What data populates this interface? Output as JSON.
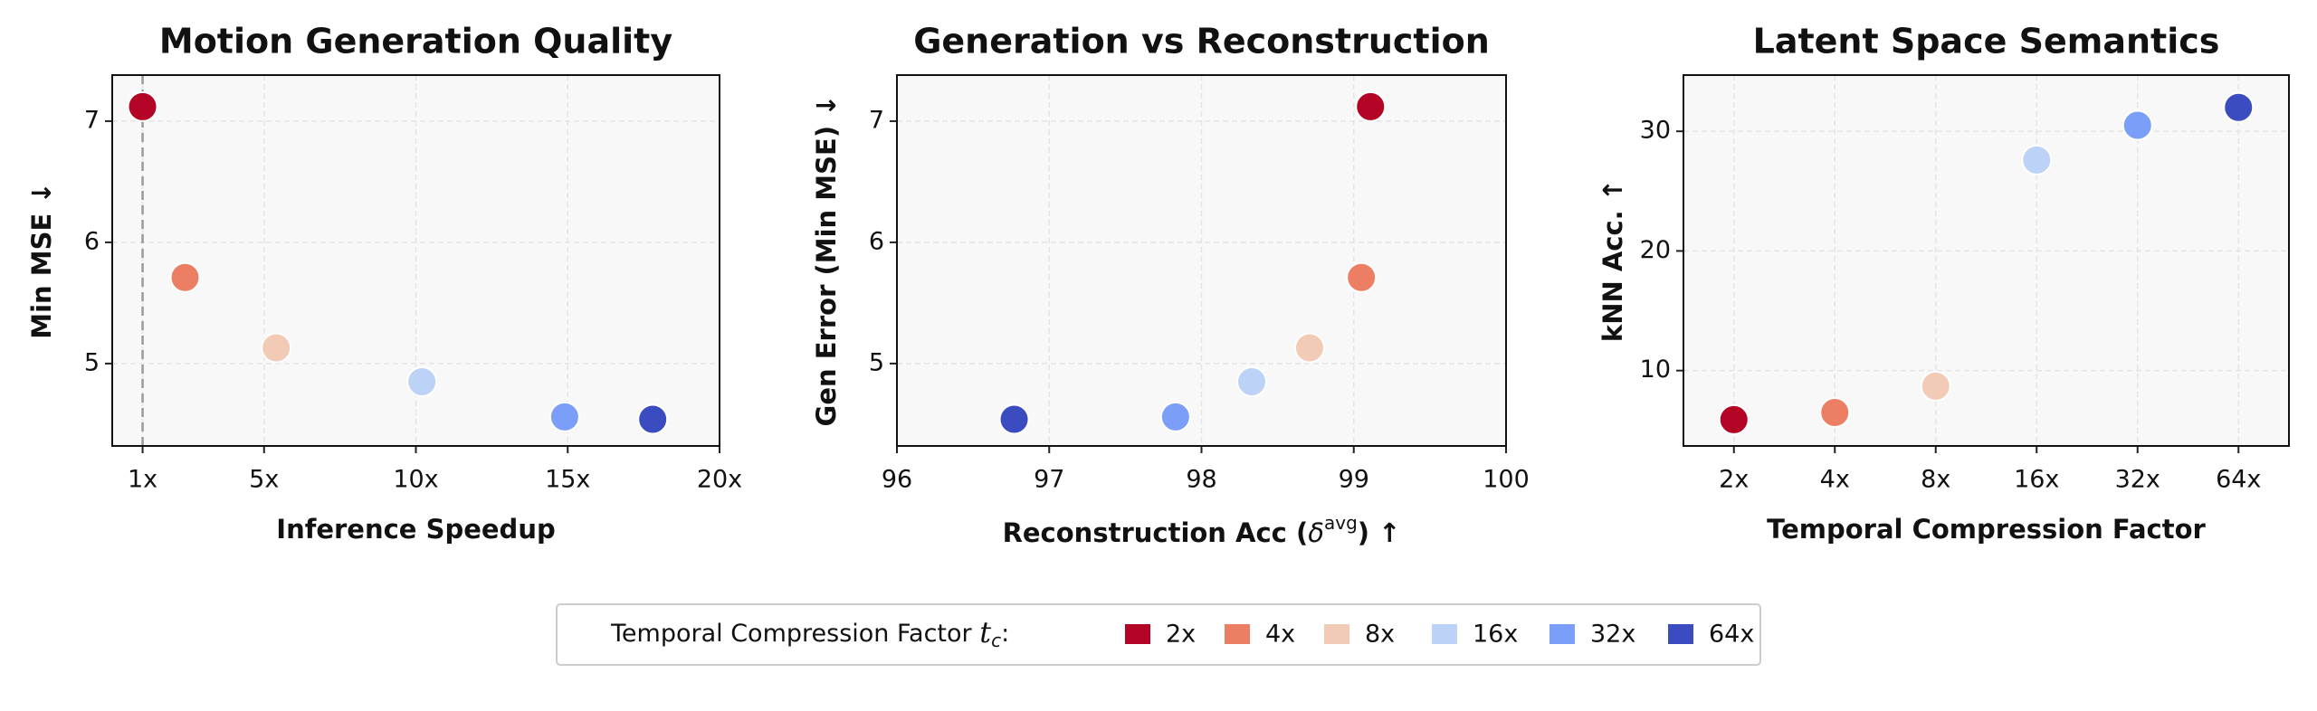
{
  "chart_data": [
    {
      "type": "scatter",
      "title": "Motion Generation Quality",
      "xlabel": "Inference Speedup",
      "ylabel": "Min MSE ↓",
      "x": [
        1,
        2.4,
        5.4,
        10.2,
        14.9,
        17.8
      ],
      "values": [
        7.12,
        5.71,
        5.13,
        4.85,
        4.56,
        4.54
      ],
      "xlim": [
        0,
        20
      ],
      "xticks": [
        {
          "value": 1,
          "label": "1x"
        },
        {
          "value": 5,
          "label": "5x"
        },
        {
          "value": 10,
          "label": "10x"
        },
        {
          "value": 15,
          "label": "15x"
        },
        {
          "value": 20,
          "label": "20x"
        }
      ],
      "ylim": [
        4.32,
        7.38
      ],
      "yticks": [
        5,
        6,
        7
      ],
      "vline": 1,
      "grid": true
    },
    {
      "type": "scatter",
      "title": "Generation vs Reconstruction",
      "xlabel_parts": [
        "Reconstruction Acc (",
        "δ",
        "avg",
        ")  ↑"
      ],
      "ylabel": "Gen Error (Min MSE) ↓",
      "x": [
        99.11,
        99.05,
        98.71,
        98.33,
        97.83,
        96.77
      ],
      "values": [
        7.12,
        5.71,
        5.13,
        4.85,
        4.56,
        4.54
      ],
      "xlim": [
        96,
        100
      ],
      "xticks": [
        96,
        97,
        98,
        99,
        100
      ],
      "ylim": [
        4.32,
        7.38
      ],
      "yticks": [
        5,
        6,
        7
      ],
      "grid": true
    },
    {
      "type": "category-scatter",
      "title": "Latent Space Semantics",
      "xlabel": "Temporal Compression Factor",
      "ylabel": "kNN Acc. ↑",
      "categories": [
        "2x",
        "4x",
        "8x",
        "16x",
        "32x",
        "64x"
      ],
      "values": [
        5.9,
        6.5,
        8.7,
        27.6,
        30.5,
        32.0
      ],
      "ylim": [
        3.7,
        34.7
      ],
      "yticks": [
        10,
        20,
        30
      ],
      "grid": true
    }
  ],
  "legend": {
    "title_parts": [
      "Temporal Compression Factor ",
      "t",
      "c",
      ":"
    ],
    "entries": [
      {
        "name": "2x",
        "color": "#b40426"
      },
      {
        "name": "4x",
        "color": "#ec7f63"
      },
      {
        "name": "8x",
        "color": "#f2cbb7"
      },
      {
        "name": "16x",
        "color": "#bcd2f7"
      },
      {
        "name": "32x",
        "color": "#7b9ff9"
      },
      {
        "name": "64x",
        "color": "#3b4cc0"
      }
    ]
  }
}
